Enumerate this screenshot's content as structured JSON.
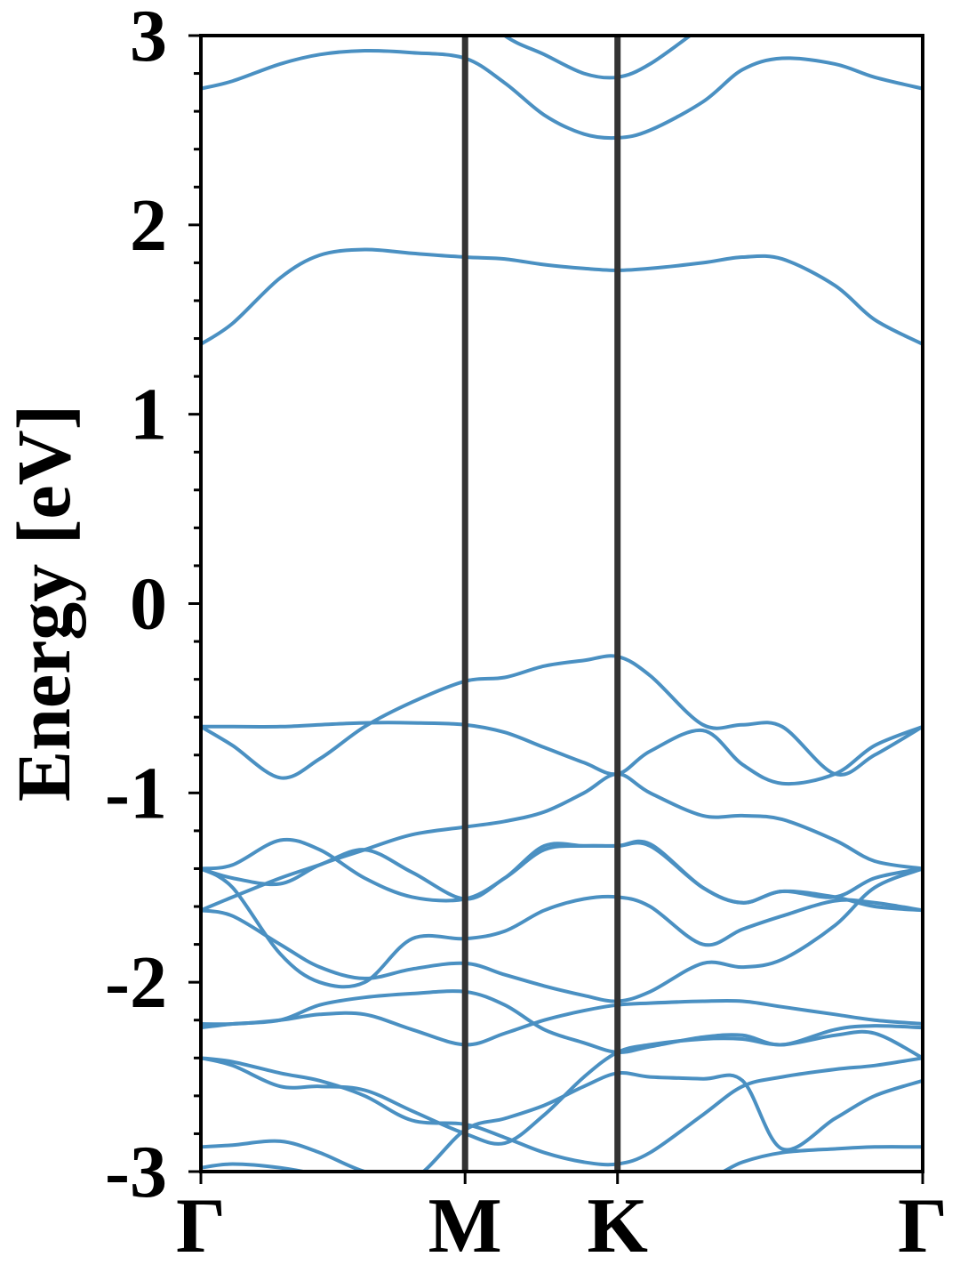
{
  "chart_data": {
    "type": "line",
    "ylabel": "Energy [eV]",
    "xlabel": "",
    "title": "",
    "ylim": [
      -3,
      3
    ],
    "yticks": [
      3,
      2,
      1,
      0,
      -1,
      -2,
      -3
    ],
    "ytick_labels": [
      "3",
      "2",
      "1",
      "0",
      "-1",
      "-2",
      "-3"
    ],
    "kpoints": [
      {
        "label": "Γ",
        "k": 0
      },
      {
        "label": "M",
        "k": 1
      },
      {
        "label": "K",
        "k": 1.577
      },
      {
        "label": "Γ",
        "k": 2.732
      }
    ],
    "grid": false,
    "line_color": "#4a90c2",
    "kline_color": "#333333",
    "bands": [
      {
        "k": [
          0,
          0.12,
          0.3,
          0.45,
          0.62,
          0.8,
          1,
          1.15,
          1.3,
          1.45,
          1.577,
          1.7,
          1.9,
          2.05,
          2.2,
          2.4,
          2.55,
          2.732
        ],
        "e": [
          -2.98,
          -2.96,
          -2.98,
          -3.02,
          -3.1,
          -3.2,
          -3.2,
          -3.12,
          -3.05,
          -3.01,
          -3.0,
          -3.01,
          -3.04,
          -2.95,
          -2.9,
          -2.88,
          -2.87,
          -2.87
        ]
      },
      {
        "k": [
          0,
          0.12,
          0.3,
          0.45,
          0.62,
          0.8,
          1,
          1.15,
          1.3,
          1.45,
          1.577,
          1.7,
          1.9,
          2.05,
          2.2,
          2.4,
          2.55,
          2.732
        ],
        "e": [
          -2.87,
          -2.86,
          -2.84,
          -2.9,
          -3.0,
          -3.04,
          -2.78,
          -2.72,
          -2.65,
          -2.55,
          -2.48,
          -2.5,
          -2.51,
          -2.52,
          -2.88,
          -2.72,
          -2.6,
          -2.52
        ]
      },
      {
        "k": [
          0,
          0.12,
          0.3,
          0.45,
          0.62,
          0.8,
          1,
          1.15,
          1.3,
          1.45,
          1.577,
          1.7,
          1.9,
          2.05,
          2.2,
          2.4,
          2.55,
          2.732
        ],
        "e": [
          -2.4,
          -2.42,
          -2.48,
          -2.52,
          -2.6,
          -2.73,
          -2.75,
          -2.82,
          -2.9,
          -2.95,
          -2.96,
          -2.9,
          -2.7,
          -2.55,
          -2.5,
          -2.46,
          -2.44,
          -2.4
        ]
      },
      {
        "k": [
          0,
          0.12,
          0.3,
          0.45,
          0.62,
          0.8,
          1,
          1.15,
          1.3,
          1.45,
          1.577,
          1.7,
          1.9,
          2.05,
          2.2,
          2.4,
          2.55,
          2.732
        ],
        "e": [
          -2.4,
          -2.44,
          -2.55,
          -2.55,
          -2.57,
          -2.68,
          -2.8,
          -2.85,
          -2.7,
          -2.5,
          -2.37,
          -2.33,
          -2.3,
          -2.3,
          -2.33,
          -2.28,
          -2.27,
          -2.4
        ]
      },
      {
        "k": [
          0,
          0.12,
          0.3,
          0.45,
          0.62,
          0.8,
          1,
          1.15,
          1.3,
          1.45,
          1.577,
          1.7,
          1.9,
          2.05,
          2.2,
          2.4,
          2.55,
          2.732
        ],
        "e": [
          -2.22,
          -2.22,
          -2.2,
          -2.17,
          -2.17,
          -2.25,
          -2.33,
          -2.27,
          -2.2,
          -2.15,
          -2.12,
          -2.11,
          -2.1,
          -2.1,
          -2.13,
          -2.17,
          -2.2,
          -2.22
        ]
      },
      {
        "k": [
          0,
          0.12,
          0.3,
          0.45,
          0.62,
          0.8,
          1,
          1.15,
          1.3,
          1.45,
          1.577,
          1.7,
          1.9,
          2.05,
          2.2,
          2.4,
          2.55,
          2.732
        ],
        "e": [
          -2.24,
          -2.22,
          -2.2,
          -2.12,
          -2.08,
          -2.06,
          -2.05,
          -2.12,
          -2.25,
          -2.32,
          -2.37,
          -2.34,
          -2.29,
          -2.28,
          -2.33,
          -2.25,
          -2.23,
          -2.24
        ]
      },
      {
        "k": [
          0,
          0.12,
          0.3,
          0.45,
          0.62,
          0.8,
          1,
          1.15,
          1.3,
          1.45,
          1.577,
          1.7,
          1.9,
          2.05,
          2.2,
          2.4,
          2.55,
          2.732
        ],
        "e": [
          -1.62,
          -1.65,
          -1.8,
          -1.92,
          -1.98,
          -1.93,
          -1.9,
          -1.96,
          -2.02,
          -2.07,
          -2.1,
          -2.05,
          -1.9,
          -1.92,
          -1.88,
          -1.7,
          -1.5,
          -1.4
        ]
      },
      {
        "k": [
          0,
          0.12,
          0.3,
          0.45,
          0.62,
          0.8,
          1,
          1.15,
          1.3,
          1.45,
          1.577,
          1.7,
          1.9,
          2.05,
          2.2,
          2.4,
          2.55,
          2.732
        ],
        "e": [
          -1.4,
          -1.5,
          -1.85,
          -2.0,
          -2.0,
          -1.77,
          -1.77,
          -1.73,
          -1.62,
          -1.56,
          -1.55,
          -1.6,
          -1.8,
          -1.72,
          -1.65,
          -1.57,
          -1.58,
          -1.62
        ]
      },
      {
        "k": [
          0,
          0.12,
          0.3,
          0.45,
          0.62,
          0.8,
          1,
          1.15,
          1.3,
          1.45,
          1.577,
          1.7,
          1.9,
          2.05,
          2.2,
          2.4,
          2.55,
          2.732
        ],
        "e": [
          -1.62,
          -1.55,
          -1.45,
          -1.38,
          -1.3,
          -1.42,
          -1.56,
          -1.45,
          -1.3,
          -1.28,
          -1.28,
          -1.27,
          -1.5,
          -1.58,
          -1.52,
          -1.55,
          -1.6,
          -1.62
        ]
      },
      {
        "k": [
          0,
          0.12,
          0.3,
          0.45,
          0.62,
          0.8,
          1,
          1.15,
          1.3,
          1.45,
          1.577,
          1.7,
          1.9,
          2.05,
          2.2,
          2.4,
          2.55,
          2.732
        ],
        "e": [
          -1.4,
          -1.38,
          -1.25,
          -1.3,
          -1.45,
          -1.55,
          -1.56,
          -1.45,
          -1.28,
          -1.28,
          -1.28,
          -1.28,
          -1.5,
          -1.58,
          -1.52,
          -1.55,
          -1.45,
          -1.4
        ]
      },
      {
        "k": [
          0,
          0.12,
          0.3,
          0.45,
          0.62,
          0.8,
          1,
          1.15,
          1.3,
          1.45,
          1.577,
          1.7,
          1.9,
          2.05,
          2.2,
          2.4,
          2.55,
          2.732
        ],
        "e": [
          -0.65,
          -0.75,
          -0.92,
          -0.82,
          -0.65,
          -0.52,
          -0.41,
          -0.39,
          -0.33,
          -0.3,
          -0.28,
          -0.38,
          -0.64,
          -0.64,
          -0.65,
          -0.9,
          -0.8,
          -0.65
        ]
      },
      {
        "k": [
          0,
          0.12,
          0.3,
          0.45,
          0.62,
          0.8,
          1,
          1.15,
          1.3,
          1.45,
          1.577,
          1.7,
          1.9,
          2.05,
          2.2,
          2.4,
          2.55,
          2.732
        ],
        "e": [
          -0.65,
          -0.65,
          -0.65,
          -0.64,
          -0.63,
          -0.63,
          -0.64,
          -0.68,
          -0.76,
          -0.84,
          -0.9,
          -0.78,
          -0.67,
          -0.85,
          -0.95,
          -0.9,
          -0.75,
          -0.65
        ]
      },
      {
        "k": [
          0,
          0.12,
          0.3,
          0.45,
          0.62,
          0.8,
          1,
          1.15,
          1.3,
          1.45,
          1.577,
          1.7,
          1.9,
          2.05,
          2.2,
          2.4,
          2.55,
          2.732
        ],
        "e": [
          -1.4,
          -1.45,
          -1.48,
          -1.38,
          -1.3,
          -1.22,
          -1.18,
          -1.15,
          -1.1,
          -1.0,
          -0.9,
          -1.0,
          -1.12,
          -1.12,
          -1.14,
          -1.25,
          -1.36,
          -1.4
        ]
      },
      {
        "k": [
          0,
          0.12,
          0.3,
          0.45,
          0.62,
          0.8,
          1,
          1.15,
          1.3,
          1.45,
          1.577,
          1.7,
          1.9,
          2.05,
          2.2,
          2.4,
          2.55,
          2.732
        ],
        "e": [
          1.37,
          1.48,
          1.72,
          1.84,
          1.87,
          1.85,
          1.83,
          1.82,
          1.79,
          1.77,
          1.76,
          1.77,
          1.8,
          1.83,
          1.82,
          1.68,
          1.5,
          1.37
        ]
      },
      {
        "k": [
          0,
          0.12,
          0.3,
          0.45,
          0.62,
          0.8,
          1,
          1.15,
          1.3,
          1.45,
          1.577,
          1.7,
          1.9,
          2.05,
          2.2,
          2.4,
          2.55,
          2.732
        ],
        "e": [
          2.72,
          2.76,
          2.85,
          2.9,
          2.92,
          2.91,
          2.88,
          2.75,
          2.58,
          2.48,
          2.46,
          2.5,
          2.65,
          2.82,
          2.88,
          2.85,
          2.78,
          2.72
        ]
      },
      {
        "k": [
          0,
          0.12,
          0.3,
          0.45,
          0.62,
          0.8,
          1,
          1.15,
          1.3,
          1.45,
          1.577,
          1.7,
          1.9,
          2.05,
          2.2,
          2.4,
          2.55,
          2.732
        ],
        "e": [
          3.2,
          3.2,
          3.2,
          3.2,
          3.2,
          3.2,
          3.2,
          3.0,
          2.9,
          2.8,
          2.78,
          2.85,
          3.05,
          3.2,
          3.2,
          3.2,
          3.2,
          3.2
        ]
      }
    ]
  }
}
